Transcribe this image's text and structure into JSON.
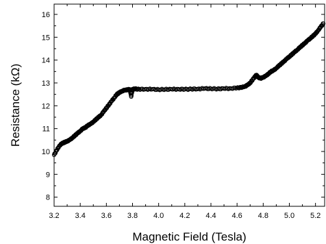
{
  "chart_data": {
    "type": "scatter",
    "xlabel": "Magnetic Field (Tesla)",
    "ylabel": "Resistance (kΩ)",
    "xlim": [
      3.2,
      5.27
    ],
    "ylim": [
      7.6,
      16.45
    ],
    "x_ticks": [
      "3.2",
      "3.4",
      "3.6",
      "3.8",
      "4.0",
      "4.2",
      "4.4",
      "4.6",
      "4.8",
      "5.0",
      "5.2"
    ],
    "y_ticks": [
      "8",
      "9",
      "10",
      "11",
      "12",
      "13",
      "14",
      "15",
      "16"
    ],
    "marker": "open-circle",
    "color": "#000000",
    "grid": false,
    "series": [
      {
        "x": [
          3.2,
          3.22,
          3.24,
          3.26,
          3.28,
          3.3,
          3.32,
          3.34,
          3.36,
          3.38,
          3.4,
          3.42,
          3.44,
          3.46,
          3.48,
          3.5,
          3.52,
          3.54,
          3.56,
          3.58,
          3.6,
          3.62,
          3.64,
          3.66,
          3.68,
          3.7,
          3.72,
          3.74,
          3.76,
          3.78,
          3.79,
          3.8,
          3.82,
          3.85,
          3.9,
          3.95,
          4.0,
          4.05,
          4.1,
          4.15,
          4.2,
          4.25,
          4.3,
          4.35,
          4.4,
          4.45,
          4.5,
          4.55,
          4.6,
          4.63,
          4.66,
          4.68,
          4.7,
          4.72,
          4.74,
          4.75,
          4.76,
          4.78,
          4.8,
          4.82,
          4.84,
          4.86,
          4.88,
          4.9,
          4.92,
          4.94,
          4.96,
          4.98,
          5.0,
          5.02,
          5.04,
          5.06,
          5.08,
          5.1,
          5.12,
          5.14,
          5.16,
          5.18,
          5.2,
          5.22,
          5.24,
          5.26
        ],
        "y": [
          9.85,
          10.05,
          10.25,
          10.35,
          10.4,
          10.45,
          10.5,
          10.6,
          10.7,
          10.8,
          10.9,
          11.0,
          11.05,
          11.15,
          11.2,
          11.3,
          11.4,
          11.5,
          11.6,
          11.75,
          11.9,
          12.05,
          12.2,
          12.35,
          12.5,
          12.58,
          12.65,
          12.68,
          12.7,
          12.72,
          12.4,
          12.73,
          12.74,
          12.72,
          12.73,
          12.72,
          12.71,
          12.72,
          12.72,
          12.73,
          12.72,
          12.73,
          12.74,
          12.75,
          12.75,
          12.74,
          12.75,
          12.76,
          12.78,
          12.8,
          12.85,
          12.9,
          13.0,
          13.15,
          13.3,
          13.35,
          13.25,
          13.2,
          13.25,
          13.3,
          13.4,
          13.5,
          13.55,
          13.65,
          13.75,
          13.85,
          13.95,
          14.05,
          14.15,
          14.25,
          14.35,
          14.45,
          14.55,
          14.65,
          14.75,
          14.85,
          14.95,
          15.05,
          15.15,
          15.3,
          15.45,
          15.6
        ]
      }
    ]
  }
}
